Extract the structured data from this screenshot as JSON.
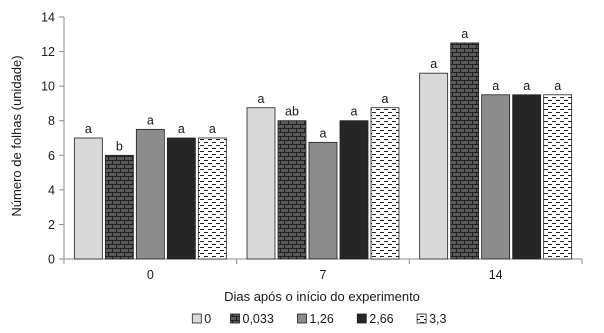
{
  "chart_data": {
    "type": "bar",
    "title": "",
    "xlabel": "Dias após o início do experimento",
    "ylabel": "Número de folhas (unidade)",
    "ylim": [
      0,
      14
    ],
    "yticks": [
      "0",
      "2",
      "4",
      "6",
      "8",
      "10",
      "12",
      "14"
    ],
    "categories": [
      "0",
      "7",
      "14"
    ],
    "grid": false,
    "legend_position": "bottom",
    "series": [
      {
        "name": "0",
        "values": [
          7.0,
          8.75,
          10.75
        ],
        "letters": [
          "a",
          "a",
          "a"
        ],
        "fill": "light-gray",
        "color": "#d9d9d9"
      },
      {
        "name": "0,033",
        "values": [
          6.0,
          8.0,
          12.5
        ],
        "letters": [
          "b",
          "ab",
          "a"
        ],
        "fill": "brick-pattern",
        "color": "#595959"
      },
      {
        "name": "1,26",
        "values": [
          7.5,
          6.75,
          9.5
        ],
        "letters": [
          "a",
          "a",
          "a"
        ],
        "fill": "medium-gray",
        "color": "#8c8c8c"
      },
      {
        "name": "2,66",
        "values": [
          7.0,
          8.0,
          9.5
        ],
        "letters": [
          "a",
          "a",
          "a"
        ],
        "fill": "dark-gray",
        "color": "#262626"
      },
      {
        "name": "3,3",
        "values": [
          7.0,
          8.75,
          9.5
        ],
        "letters": [
          "a",
          "a",
          "a"
        ],
        "fill": "dashed-pattern",
        "color": "#ffffff"
      }
    ]
  }
}
